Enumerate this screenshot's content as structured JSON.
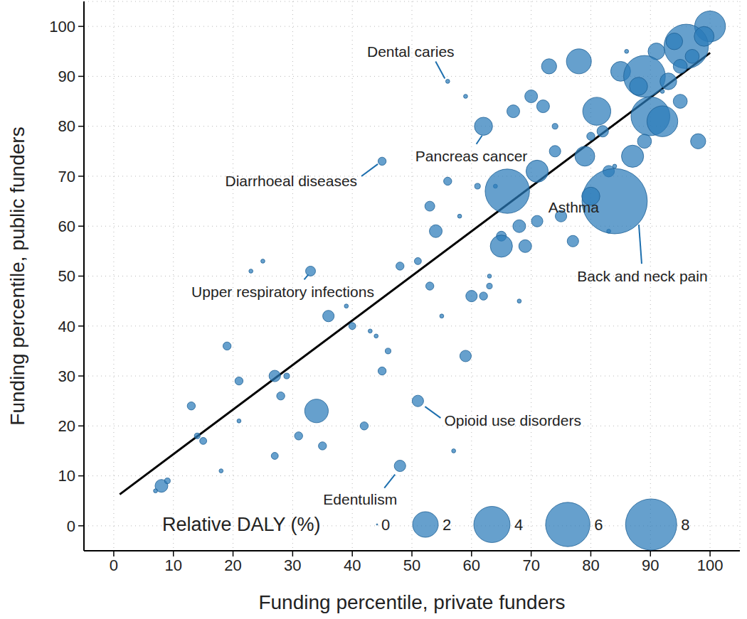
{
  "chart_data": {
    "type": "scatter",
    "x_label": "Funding percentile, private funders",
    "y_label": "Funding percentile, public funders",
    "xlim": [
      -5,
      105
    ],
    "ylim": [
      -5,
      105
    ],
    "xticks": [
      0,
      10,
      20,
      30,
      40,
      50,
      60,
      70,
      80,
      90,
      100
    ],
    "yticks": [
      0,
      10,
      20,
      30,
      40,
      50,
      60,
      70,
      80,
      90,
      100
    ],
    "grid": true,
    "color": "#2b7bba",
    "marker": "circle",
    "x": [
      100,
      96,
      99,
      94,
      91,
      97,
      95,
      86,
      85,
      89,
      88,
      93,
      92,
      78,
      73,
      90,
      92,
      81,
      95,
      70,
      72,
      67,
      74,
      82,
      80,
      89,
      98,
      87,
      79,
      74,
      71,
      83,
      84,
      62,
      56,
      61,
      64,
      66,
      53,
      54,
      58,
      65,
      68,
      71,
      75,
      65,
      69,
      77,
      83,
      48,
      51,
      53,
      63,
      62,
      60,
      68,
      33,
      36,
      40,
      39,
      46,
      45,
      59,
      19,
      21,
      27,
      29,
      28,
      34,
      51,
      42,
      31,
      35,
      27,
      48,
      13,
      14,
      15,
      21,
      18,
      8,
      9,
      7,
      23,
      25,
      44,
      45,
      59,
      55,
      84,
      80,
      56,
      57,
      63,
      43
    ],
    "y": [
      100,
      96,
      98,
      97,
      95,
      94,
      92,
      95,
      91,
      90,
      88,
      89,
      87,
      93,
      92,
      82,
      81,
      83,
      85,
      86,
      84,
      83,
      80,
      79,
      78,
      77,
      77,
      74,
      74,
      75,
      71,
      71,
      72,
      80,
      69,
      68,
      68,
      67,
      64,
      59,
      62,
      58,
      60,
      61,
      62,
      56,
      56,
      57,
      59,
      52,
      53,
      48,
      48,
      46,
      46,
      45,
      51,
      42,
      40,
      44,
      35,
      31,
      34,
      36,
      29,
      30,
      30,
      26,
      23,
      25,
      20,
      18,
      16,
      14,
      12,
      24,
      18,
      17,
      21,
      11,
      8,
      9,
      7,
      51,
      53,
      38,
      73,
      86,
      42,
      65,
      66,
      89,
      15,
      50,
      39
    ],
    "relative_daly": [
      2.9,
      6,
      1.2,
      0.85,
      0.85,
      0.6,
      0.6,
      0.05,
      1.2,
      5.3,
      1,
      0.85,
      0.05,
      1.9,
      0.7,
      4.6,
      2.9,
      2.4,
      0.6,
      0.5,
      0.5,
      0.5,
      0.1,
      0.4,
      0.2,
      0.6,
      0.7,
      1.5,
      1.2,
      0.4,
      1.5,
      0.4,
      0.05,
      1,
      0.2,
      0.1,
      0.05,
      6,
      0.3,
      0.5,
      0.05,
      0.3,
      0.5,
      0.4,
      0.4,
      1.5,
      0.5,
      0.4,
      0.05,
      0.2,
      0.15,
      0.2,
      0.1,
      0.2,
      0.4,
      0.05,
      0.3,
      0.4,
      0.15,
      0.05,
      0.1,
      0.2,
      0.4,
      0.2,
      0.2,
      0.4,
      0.1,
      0.2,
      1.7,
      0.4,
      0.2,
      0.2,
      0.2,
      0.15,
      0.4,
      0.2,
      0.1,
      0.15,
      0.05,
      0.05,
      0.5,
      0.1,
      0.05,
      0.05,
      0.05,
      0.05,
      0.2,
      0.05,
      0.05,
      13,
      1,
      0.05,
      0.05,
      0.05,
      0.05
    ],
    "size_legend": {
      "title": "Relative DALY (%)",
      "values": [
        0,
        2,
        4,
        6,
        8
      ]
    },
    "fit_line": {
      "x": [
        1,
        100
      ],
      "y": [
        6.3,
        94.7
      ],
      "color": "#000000"
    },
    "annotations": [
      {
        "text": "Dental caries",
        "x": 56,
        "y": 89
      },
      {
        "text": "Pancreas cancer",
        "x": 62,
        "y": 80
      },
      {
        "text": "Diarrhoeal diseases",
        "x": 45,
        "y": 73
      },
      {
        "text": "Asthma",
        "x": 80,
        "y": 66
      },
      {
        "text": "Back and neck pain",
        "x": 84,
        "y": 65
      },
      {
        "text": "Upper respiratory infections",
        "x": 33,
        "y": 51
      },
      {
        "text": "Opioid use disorders",
        "x": 51,
        "y": 25
      },
      {
        "text": "Edentulism",
        "x": 48,
        "y": 12
      }
    ]
  }
}
